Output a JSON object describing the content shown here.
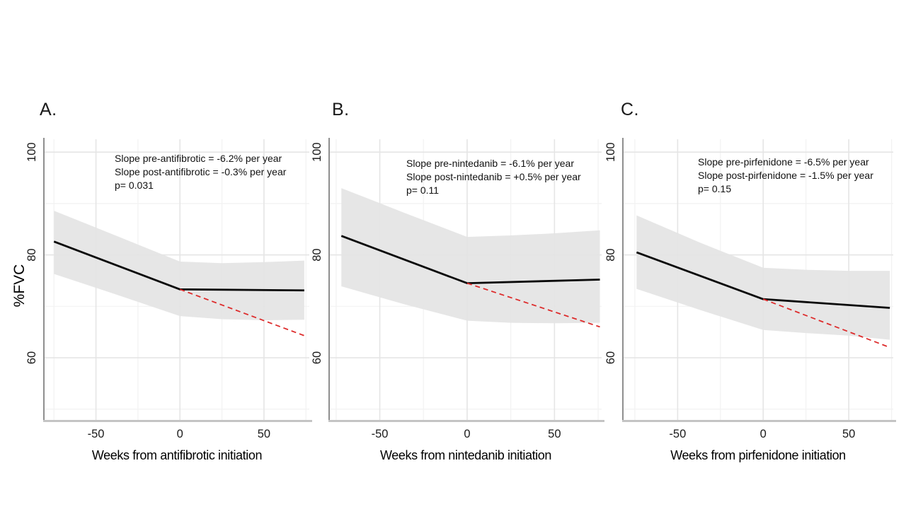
{
  "figure": {
    "background": "#ffffff",
    "shared_y_axis_title": "%FVC"
  },
  "colors": {
    "fitted_line": "#0a0a0a",
    "projection_line": "#dd2c2c",
    "confidence_band": "#e4e4e4",
    "grid_major": "#e5e5e5",
    "grid_minor": "#f2f2f2",
    "axis_left_line": "#8f8f8f",
    "axis_bottom_line": "#c4c4c4",
    "tick_text": "#1a1a1a"
  },
  "chart_data": [
    {
      "type": "line",
      "panel_label": "A.",
      "title": "",
      "xlabel": "Weeks from antifibrotic initiation",
      "ylabel": "%FVC",
      "annotation": {
        "line1": "Slope pre-antifibrotic = -6.2% per year",
        "line2": "Slope post-antifibrotic = -0.3% per year",
        "line3": "p= 0.031"
      },
      "slopes": {
        "pre_per_year": -6.2,
        "post_per_year": -0.3,
        "p_value": 0.031
      },
      "xlim": [
        -81,
        77
      ],
      "ylim": [
        47.9,
        102.5
      ],
      "x_ticks": [
        -50,
        0,
        50
      ],
      "y_ticks": [
        100,
        80,
        60
      ],
      "grid_x_minor": [
        -75,
        -25,
        25,
        75
      ],
      "grid_y_minor": [
        90,
        70,
        50
      ],
      "series": [
        {
          "name": "fitted %FVC (pre/post breakpoint)",
          "style": "solid",
          "points": [
            [
              -75,
              82.6
            ],
            [
              0,
              73.3
            ],
            [
              74,
              73.1
            ]
          ]
        },
        {
          "name": "projected pre-antifibrotic slope",
          "style": "dashed",
          "points": [
            [
              0,
              73.3
            ],
            [
              74,
              64.3
            ]
          ]
        }
      ],
      "band": {
        "name": "95% confidence band",
        "upper": [
          [
            -75,
            88.6
          ],
          [
            -37,
            83.6
          ],
          [
            0,
            78.7
          ],
          [
            25,
            78.4
          ],
          [
            50,
            78.6
          ],
          [
            74,
            78.9
          ]
        ],
        "lower": [
          [
            -75,
            76.3
          ],
          [
            -37,
            72.2
          ],
          [
            0,
            68.1
          ],
          [
            25,
            67.5
          ],
          [
            50,
            67.3
          ],
          [
            74,
            67.4
          ]
        ]
      }
    },
    {
      "type": "line",
      "panel_label": "B.",
      "title": "",
      "xlabel": "Weeks from nintedanib initiation",
      "ylabel": "",
      "annotation": {
        "line1": "Slope pre-nintedanib = -6.1% per year",
        "line2": "Slope post-nintedanib = +0.5% per year",
        "line3": "p= 0.11"
      },
      "slopes": {
        "pre_per_year": -6.1,
        "post_per_year": 0.5,
        "p_value": 0.11
      },
      "xlim": [
        -79,
        77
      ],
      "ylim": [
        47.9,
        102.5
      ],
      "x_ticks": [
        -50,
        0,
        50
      ],
      "y_ticks": [
        100,
        80,
        60
      ],
      "grid_x_minor": [
        -75,
        -25,
        25,
        75
      ],
      "grid_y_minor": [
        90,
        70,
        50
      ],
      "series": [
        {
          "name": "fitted %FVC (pre/post breakpoint)",
          "style": "solid",
          "points": [
            [
              -72,
              83.7
            ],
            [
              0,
              74.5
            ],
            [
              76,
              75.2
            ]
          ]
        },
        {
          "name": "projected pre-nintedanib slope",
          "style": "dashed",
          "points": [
            [
              0,
              74.5
            ],
            [
              76,
              66.0
            ]
          ]
        }
      ],
      "band": {
        "name": "95% confidence band",
        "upper": [
          [
            -72,
            93.0
          ],
          [
            -36,
            88.2
          ],
          [
            0,
            83.5
          ],
          [
            25,
            83.8
          ],
          [
            50,
            84.2
          ],
          [
            76,
            84.8
          ]
        ],
        "lower": [
          [
            -72,
            73.9
          ],
          [
            -36,
            70.4
          ],
          [
            0,
            67.2
          ],
          [
            25,
            66.8
          ],
          [
            50,
            66.7
          ],
          [
            76,
            66.8
          ]
        ]
      }
    },
    {
      "type": "line",
      "panel_label": "C.",
      "title": "",
      "xlabel": "Weeks from pirfenidone initiation",
      "ylabel": "",
      "annotation": {
        "line1": "Slope pre-pirfenidone = -6.5% per year",
        "line2": "Slope post-pirfenidone = -1.5% per year",
        "line3": "p= 0.15"
      },
      "slopes": {
        "pre_per_year": -6.5,
        "post_per_year": -1.5,
        "p_value": 0.15
      },
      "xlim": [
        -82,
        76
      ],
      "ylim": [
        47.9,
        102.5
      ],
      "x_ticks": [
        -50,
        0,
        50
      ],
      "y_ticks": [
        100,
        80,
        60
      ],
      "grid_x_minor": [
        -75,
        -25,
        25,
        75
      ],
      "grid_y_minor": [
        90,
        70,
        50
      ],
      "series": [
        {
          "name": "fitted %FVC (pre/post breakpoint)",
          "style": "solid",
          "points": [
            [
              -74,
              80.5
            ],
            [
              0,
              71.4
            ],
            [
              74,
              69.7
            ]
          ]
        },
        {
          "name": "projected pre-pirfenidone slope",
          "style": "dashed",
          "points": [
            [
              0,
              71.4
            ],
            [
              74,
              62.0
            ]
          ]
        }
      ],
      "band": {
        "name": "95% confidence band",
        "upper": [
          [
            -74,
            87.7
          ],
          [
            -37,
            82.4
          ],
          [
            0,
            77.5
          ],
          [
            25,
            77.1
          ],
          [
            50,
            76.9
          ],
          [
            74,
            76.9
          ]
        ],
        "lower": [
          [
            -74,
            73.4
          ],
          [
            -37,
            69.3
          ],
          [
            0,
            65.4
          ],
          [
            25,
            64.8
          ],
          [
            50,
            64.3
          ],
          [
            74,
            63.5
          ]
        ]
      }
    }
  ]
}
